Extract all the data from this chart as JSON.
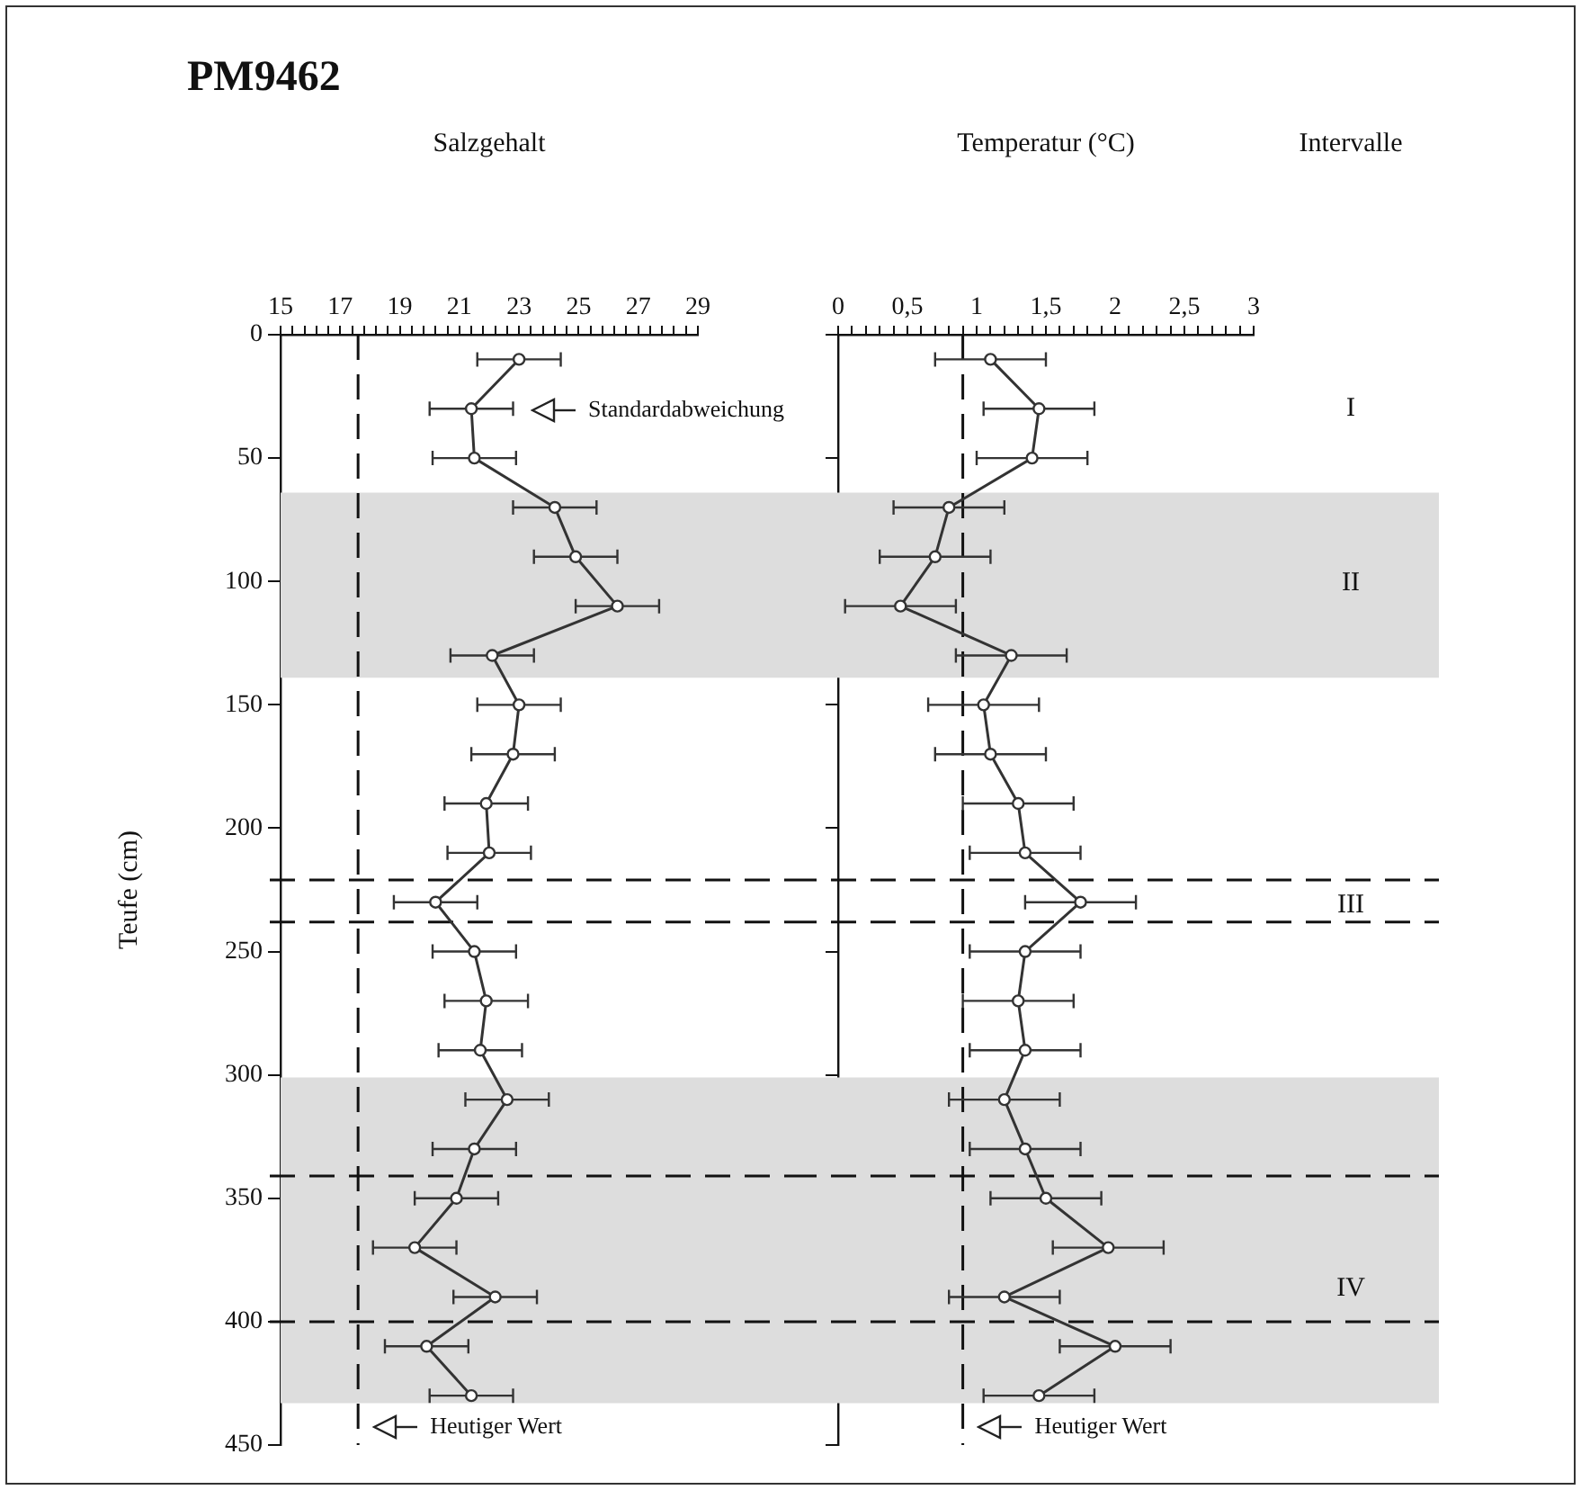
{
  "chart_data": [
    {
      "type": "line",
      "title": "PM9462",
      "xlabel": "Salzgehalt",
      "ylabel": "Teufe (cm)",
      "marker": "circle",
      "grid": false,
      "series": [
        {
          "color": "#333333",
          "x": [
            23.0,
            21.4,
            21.5,
            24.2,
            24.9,
            26.3,
            22.1,
            23.0,
            22.8,
            21.9,
            22.0,
            20.2,
            21.5,
            21.9,
            21.7,
            22.6,
            21.5,
            20.9,
            19.5,
            22.2,
            19.9,
            21.4
          ],
          "values": [
            10,
            30,
            50,
            70,
            90,
            110,
            130,
            150,
            170,
            190,
            210,
            230,
            250,
            270,
            290,
            310,
            330,
            350,
            370,
            390,
            410,
            430
          ],
          "xerrors": [
            1.4,
            1.4,
            1.4,
            1.4,
            1.4,
            1.4,
            1.4,
            1.4,
            1.4,
            1.4,
            1.4,
            1.4,
            1.4,
            1.4,
            1.4,
            1.4,
            1.4,
            1.4,
            1.4,
            1.4,
            1.4,
            1.4
          ]
        }
      ],
      "xlim": [
        15,
        29
      ],
      "xticks": [
        15,
        {
          "value": 15.4,
          "label": null
        },
        {
          "value": 15.8,
          "label": null
        },
        {
          "value": 16.2,
          "label": null
        },
        {
          "value": 16.6,
          "label": null
        },
        17,
        {
          "value": 17.4,
          "label": null
        },
        {
          "value": 17.8,
          "label": null
        },
        {
          "value": 18.2,
          "label": null
        },
        {
          "value": 18.6,
          "label": null
        },
        19,
        {
          "value": 19.4,
          "label": null
        },
        {
          "value": 19.8,
          "label": null
        },
        {
          "value": 20.2,
          "label": null
        },
        {
          "value": 20.6,
          "label": null
        },
        21,
        {
          "value": 21.4,
          "label": null
        },
        {
          "value": 21.8,
          "label": null
        },
        {
          "value": 22.2,
          "label": null
        },
        {
          "value": 22.6,
          "label": null
        },
        23,
        {
          "value": 23.4,
          "label": null
        },
        {
          "value": 23.8,
          "label": null
        },
        {
          "value": 24.2,
          "label": null
        },
        {
          "value": 24.6,
          "label": null
        },
        25,
        {
          "value": 25.4,
          "label": null
        },
        {
          "value": 25.8,
          "label": null
        },
        {
          "value": 26.2,
          "label": null
        },
        {
          "value": 26.6,
          "label": null
        },
        27,
        {
          "value": 27.4,
          "label": null
        },
        {
          "value": 27.8,
          "label": null
        },
        {
          "value": 28.2,
          "label": null
        },
        {
          "value": 28.6,
          "label": null
        },
        29
      ],
      "ylim": [
        450,
        0
      ],
      "yticks": [
        0,
        50,
        100,
        150,
        200,
        250,
        300,
        350,
        400,
        450
      ],
      "ref_lines": [
        {
          "axis": "x",
          "value": 17.6,
          "label": "Heutiger Wert",
          "line_style": "dashed"
        },
        {
          "axis": "y",
          "value": 221,
          "line_style": "dashed"
        },
        {
          "axis": "y",
          "value": 238,
          "line_style": "dashed"
        },
        {
          "axis": "y",
          "value": 341,
          "line_style": "dashed"
        },
        {
          "axis": "y",
          "value": 400,
          "line_style": "dashed"
        }
      ],
      "bands": [
        {
          "axis": "y",
          "from": 64,
          "to": 139,
          "color": "#dddddd"
        },
        {
          "axis": "y",
          "from": 301,
          "to": 433,
          "color": "#dddddd"
        }
      ],
      "annotations": [
        "Standardabweichung"
      ]
    },
    {
      "type": "line",
      "xlabel": "Temperatur (°C)",
      "marker": "circle",
      "grid": false,
      "tick_labels": "x",
      "series": [
        {
          "color": "#333333",
          "x": [
            1.1,
            1.45,
            1.4,
            0.8,
            0.7,
            0.45,
            1.25,
            1.05,
            1.1,
            1.3,
            1.35,
            1.75,
            1.35,
            1.3,
            1.35,
            1.2,
            1.35,
            1.5,
            1.95,
            1.2,
            2.0,
            1.45
          ],
          "values": [
            10,
            30,
            50,
            70,
            90,
            110,
            130,
            150,
            170,
            190,
            210,
            230,
            250,
            270,
            290,
            310,
            330,
            350,
            370,
            390,
            410,
            430
          ],
          "xerrors": [
            0.4,
            0.4,
            0.4,
            0.4,
            0.4,
            0.4,
            0.4,
            0.4,
            0.4,
            0.4,
            0.4,
            0.4,
            0.4,
            0.4,
            0.4,
            0.4,
            0.4,
            0.4,
            0.4,
            0.4,
            0.4,
            0.4
          ]
        }
      ],
      "xlim": [
        0,
        3
      ],
      "xticks": [
        0,
        {
          "value": 0.1,
          "label": null
        },
        {
          "value": 0.2,
          "label": null
        },
        {
          "value": 0.3,
          "label": null
        },
        {
          "value": 0.4,
          "label": null
        },
        {
          "value": 0.5,
          "label": "0,5"
        },
        {
          "value": 0.6,
          "label": null
        },
        {
          "value": 0.7,
          "label": null
        },
        {
          "value": 0.8,
          "label": null
        },
        {
          "value": 0.9,
          "label": null
        },
        1,
        {
          "value": 1.1,
          "label": null
        },
        {
          "value": 1.2,
          "label": null
        },
        {
          "value": 1.3,
          "label": null
        },
        {
          "value": 1.4,
          "label": null
        },
        {
          "value": 1.5,
          "label": "1,5"
        },
        {
          "value": 1.6,
          "label": null
        },
        {
          "value": 1.7,
          "label": null
        },
        {
          "value": 1.8,
          "label": null
        },
        {
          "value": 1.9,
          "label": null
        },
        2,
        {
          "value": 2.1,
          "label": null
        },
        {
          "value": 2.2,
          "label": null
        },
        {
          "value": 2.3,
          "label": null
        },
        {
          "value": 2.4,
          "label": null
        },
        {
          "value": 2.5,
          "label": "2,5"
        },
        {
          "value": 2.6,
          "label": null
        },
        {
          "value": 2.7,
          "label": null
        },
        {
          "value": 2.8,
          "label": null
        },
        {
          "value": 2.9,
          "label": null
        },
        3
      ],
      "ylim": [
        450,
        0
      ],
      "yticks": [
        0,
        50,
        100,
        150,
        200,
        250,
        300,
        350,
        400,
        450
      ],
      "ref_lines": [
        {
          "axis": "x",
          "value": 0.9,
          "label": "Heutiger Wert",
          "line_style": "dashed"
        },
        {
          "axis": "y",
          "value": 221,
          "line_style": "dashed"
        },
        {
          "axis": "y",
          "value": 238,
          "line_style": "dashed"
        },
        {
          "axis": "y",
          "value": 341,
          "line_style": "dashed"
        },
        {
          "axis": "y",
          "value": 400,
          "line_style": "dashed"
        }
      ],
      "bands": [
        {
          "axis": "y",
          "from": 64,
          "to": 139,
          "color": "#dddddd"
        },
        {
          "axis": "y",
          "from": 301,
          "to": 433,
          "color": "#dddddd"
        }
      ],
      "annotations": [
        "Intervalle",
        "I",
        "II",
        "III",
        "IV"
      ]
    }
  ]
}
